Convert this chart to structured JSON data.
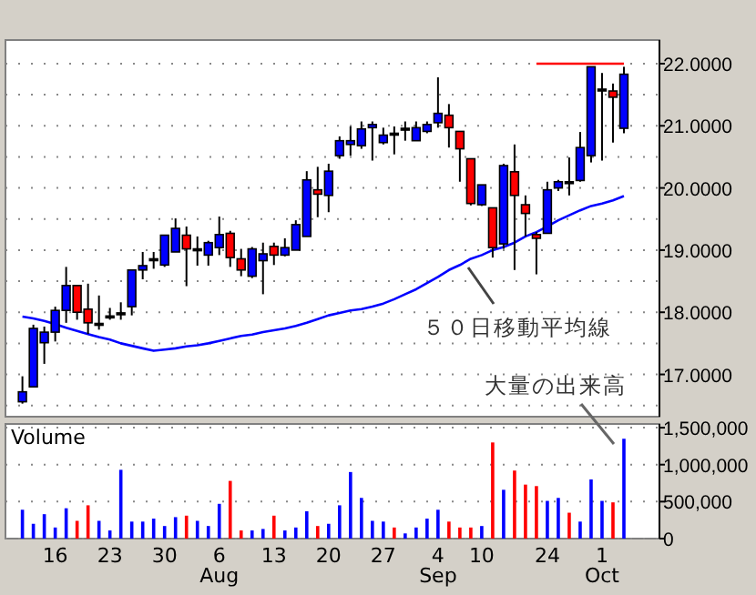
{
  "chart_data": [
    {
      "type": "candlestick",
      "categories": [
        null,
        null,
        null,
        null,
        null,
        null,
        null,
        null,
        null,
        null,
        null,
        null,
        null,
        null,
        null,
        null,
        null,
        null,
        null,
        null,
        null,
        null,
        null,
        null,
        null,
        null,
        null,
        null,
        null,
        null,
        null,
        null,
        null,
        null,
        null,
        null,
        null,
        null,
        null,
        null,
        null,
        null,
        null,
        null,
        null,
        null,
        null,
        null,
        null,
        null,
        null,
        null,
        null,
        null,
        null,
        null
      ],
      "ohlc": [
        [
          16.56,
          16.97,
          16.53,
          16.72
        ],
        [
          16.8,
          17.8,
          16.8,
          17.74
        ],
        [
          17.51,
          17.77,
          17.17,
          17.68
        ],
        [
          17.68,
          18.09,
          17.53,
          18.03
        ],
        [
          18.03,
          18.73,
          17.83,
          18.43
        ],
        [
          18.43,
          18.43,
          17.88,
          18.0
        ],
        [
          18.05,
          18.46,
          17.65,
          17.83
        ],
        [
          17.82,
          18.27,
          17.72,
          17.82
        ],
        [
          17.94,
          18.07,
          17.88,
          17.94
        ],
        [
          17.99,
          18.16,
          17.88,
          17.99
        ],
        [
          18.09,
          18.68,
          17.95,
          18.68
        ],
        [
          18.68,
          18.97,
          18.53,
          18.75
        ],
        [
          18.86,
          18.97,
          18.7,
          18.86
        ],
        [
          18.76,
          19.24,
          18.73,
          19.24
        ],
        [
          18.97,
          19.51,
          18.97,
          19.35
        ],
        [
          19.24,
          19.38,
          18.42,
          19.02
        ],
        [
          19.02,
          19.22,
          18.75,
          19.02
        ],
        [
          18.92,
          19.15,
          18.75,
          19.12
        ],
        [
          19.04,
          19.54,
          18.92,
          19.25
        ],
        [
          19.27,
          19.31,
          18.73,
          18.88
        ],
        [
          18.86,
          19.02,
          18.58,
          18.68
        ],
        [
          18.58,
          19.05,
          18.55,
          19.02
        ],
        [
          18.83,
          19.12,
          18.29,
          18.94
        ],
        [
          19.06,
          19.12,
          18.76,
          18.92
        ],
        [
          18.92,
          19.19,
          18.9,
          19.04
        ],
        [
          19.0,
          19.48,
          19.0,
          19.41
        ],
        [
          19.22,
          20.27,
          19.22,
          20.13
        ],
        [
          19.97,
          20.34,
          19.53,
          19.9
        ],
        [
          19.88,
          20.39,
          19.61,
          20.27
        ],
        [
          20.52,
          20.83,
          20.47,
          20.76
        ],
        [
          20.7,
          20.99,
          20.52,
          20.76
        ],
        [
          20.68,
          21.07,
          20.63,
          20.95
        ],
        [
          20.97,
          21.07,
          20.44,
          21.02
        ],
        [
          20.73,
          20.97,
          20.7,
          20.85
        ],
        [
          20.88,
          20.99,
          20.54,
          20.88
        ],
        [
          20.96,
          21.07,
          20.76,
          20.96
        ],
        [
          20.76,
          21.07,
          20.76,
          20.97
        ],
        [
          20.91,
          21.07,
          20.88,
          21.02
        ],
        [
          21.05,
          21.78,
          20.97,
          21.2
        ],
        [
          21.17,
          21.35,
          20.65,
          20.97
        ],
        [
          20.91,
          20.91,
          20.1,
          20.63
        ],
        [
          20.47,
          20.47,
          19.72,
          19.75
        ],
        [
          19.73,
          20.05,
          19.71,
          20.05
        ],
        [
          19.68,
          19.68,
          18.88,
          19.04
        ],
        [
          19.1,
          20.39,
          19.02,
          20.36
        ],
        [
          20.26,
          20.7,
          18.68,
          19.88
        ],
        [
          19.73,
          19.88,
          19.22,
          19.59
        ],
        [
          19.25,
          19.29,
          18.61,
          19.19
        ],
        [
          19.27,
          20.1,
          19.27,
          19.97
        ],
        [
          20.0,
          20.13,
          19.95,
          20.1
        ],
        [
          20.1,
          20.49,
          19.88,
          20.1
        ],
        [
          20.12,
          20.9,
          20.1,
          20.65
        ],
        [
          20.52,
          21.95,
          20.41,
          21.95
        ],
        [
          21.59,
          21.85,
          20.44,
          21.59
        ],
        [
          21.56,
          21.68,
          20.73,
          21.46
        ],
        [
          20.96,
          21.95,
          20.88,
          21.83
        ]
      ],
      "colors": [
        "#0000ff",
        "#0000ff",
        "#0000ff",
        "#0000ff",
        "#0000ff",
        "#ff0000",
        "#ff0000",
        "#000000",
        "#000000",
        "#000000",
        "#0000ff",
        "#0000ff",
        "#000000",
        "#0000ff",
        "#0000ff",
        "#ff0000",
        "#000000",
        "#0000ff",
        "#0000ff",
        "#ff0000",
        "#ff0000",
        "#0000ff",
        "#0000ff",
        "#ff0000",
        "#0000ff",
        "#0000ff",
        "#0000ff",
        "#ff0000",
        "#0000ff",
        "#0000ff",
        "#0000ff",
        "#0000ff",
        "#0000ff",
        "#0000ff",
        "#000000",
        "#000000",
        "#0000ff",
        "#0000ff",
        "#0000ff",
        "#ff0000",
        "#ff0000",
        "#ff0000",
        "#0000ff",
        "#ff0000",
        "#0000ff",
        "#ff0000",
        "#ff0000",
        "#ff0000",
        "#0000ff",
        "#0000ff",
        "#000000",
        "#0000ff",
        "#0000ff",
        "#000000",
        "#ff0000",
        "#0000ff"
      ],
      "series": [
        {
          "type": "line",
          "color": "#0000ff",
          "values": [
            17.93,
            17.9,
            17.86,
            17.81,
            17.75,
            17.7,
            17.65,
            17.6,
            17.56,
            17.5,
            17.46,
            17.42,
            17.38,
            17.4,
            17.42,
            17.45,
            17.47,
            17.5,
            17.54,
            17.58,
            17.62,
            17.64,
            17.68,
            17.71,
            17.74,
            17.78,
            17.83,
            17.89,
            17.95,
            17.99,
            18.03,
            18.05,
            18.09,
            18.14,
            18.21,
            18.29,
            18.37,
            18.47,
            18.57,
            18.68,
            18.76,
            18.86,
            18.92,
            19.0,
            19.05,
            19.12,
            19.22,
            19.29,
            19.38,
            19.48,
            19.56,
            19.64,
            19.71,
            19.75,
            19.8,
            19.87
          ]
        },
        {
          "type": "line",
          "color": "#ff0000",
          "values": [
            null,
            null,
            null,
            null,
            null,
            null,
            null,
            null,
            null,
            null,
            null,
            null,
            null,
            null,
            null,
            null,
            null,
            null,
            null,
            null,
            null,
            null,
            null,
            null,
            null,
            null,
            null,
            null,
            null,
            null,
            null,
            null,
            null,
            null,
            null,
            null,
            null,
            null,
            null,
            null,
            null,
            null,
            null,
            null,
            null,
            null,
            null,
            22,
            22,
            22,
            22,
            22,
            22,
            22,
            22,
            22
          ]
        }
      ],
      "ylim": [
        16.32,
        22.38
      ],
      "yticks": [
        {
          "value": 16.5,
          "label": null
        },
        {
          "value": 17,
          "label": "17.0000"
        },
        {
          "value": 17.5,
          "label": null
        },
        {
          "value": 18,
          "label": "18.0000"
        },
        {
          "value": 18.5,
          "label": null
        },
        {
          "value": 19,
          "label": "19.0000"
        },
        {
          "value": 19.5,
          "label": null
        },
        {
          "value": 20,
          "label": "20.0000"
        },
        {
          "value": 20.5,
          "label": null
        },
        {
          "value": 21,
          "label": "21.0000"
        },
        {
          "value": 21.5,
          "label": null
        },
        {
          "value": 22,
          "label": "22.0000"
        }
      ],
      "grid": "y",
      "tick_labels": "y",
      "annotations": [
        "５０日移動平均線"
      ]
    },
    {
      "type": "bar",
      "title": "Volume",
      "categories": [
        null,
        null,
        null,
        "16",
        null,
        null,
        null,
        null,
        "23",
        null,
        null,
        null,
        null,
        "30",
        null,
        null,
        null,
        null,
        "6 Aug",
        null,
        null,
        null,
        null,
        "13",
        null,
        null,
        null,
        null,
        "20",
        null,
        null,
        null,
        null,
        "27",
        null,
        null,
        null,
        null,
        "4 Sep",
        null,
        null,
        null,
        "10",
        null,
        null,
        null,
        null,
        null,
        "24",
        null,
        null,
        null,
        null,
        "1 Oct",
        null,
        null
      ],
      "values": [
        390000,
        200000,
        330000,
        150000,
        410000,
        240000,
        450000,
        240000,
        110000,
        930000,
        230000,
        230000,
        270000,
        170000,
        290000,
        310000,
        240000,
        170000,
        470000,
        780000,
        110000,
        110000,
        130000,
        310000,
        110000,
        150000,
        370000,
        170000,
        200000,
        450000,
        900000,
        550000,
        240000,
        230000,
        150000,
        70000,
        150000,
        270000,
        390000,
        230000,
        150000,
        150000,
        170000,
        1300000,
        660000,
        920000,
        730000,
        710000,
        510000,
        550000,
        350000,
        230000,
        800000,
        510000,
        490000,
        1350000
      ],
      "colors": [
        "#0000ff",
        "#0000ff",
        "#0000ff",
        "#0000ff",
        "#0000ff",
        "#ff0000",
        "#ff0000",
        "#0000ff",
        "#0000ff",
        "#0000ff",
        "#0000ff",
        "#0000ff",
        "#0000ff",
        "#0000ff",
        "#0000ff",
        "#ff0000",
        "#0000ff",
        "#0000ff",
        "#0000ff",
        "#ff0000",
        "#ff0000",
        "#0000ff",
        "#0000ff",
        "#ff0000",
        "#0000ff",
        "#0000ff",
        "#0000ff",
        "#ff0000",
        "#0000ff",
        "#0000ff",
        "#0000ff",
        "#0000ff",
        "#0000ff",
        "#0000ff",
        "#ff0000",
        "#0000ff",
        "#0000ff",
        "#0000ff",
        "#0000ff",
        "#ff0000",
        "#ff0000",
        "#ff0000",
        "#0000ff",
        "#ff0000",
        "#0000ff",
        "#ff0000",
        "#ff0000",
        "#ff0000",
        "#0000ff",
        "#0000ff",
        "#ff0000",
        "#0000ff",
        "#0000ff",
        "#0000ff",
        "#ff0000",
        "#0000ff"
      ],
      "ylim": [
        0,
        1550000
      ],
      "yticks": [
        0,
        {
          "value": 500000,
          "label": "500,000"
        },
        {
          "value": 1000000,
          "label": "1,000,000"
        },
        {
          "value": 1500000,
          "label": "1,500,000"
        }
      ],
      "grid": "y",
      "annotations": [
        "大量の出来高"
      ]
    }
  ]
}
